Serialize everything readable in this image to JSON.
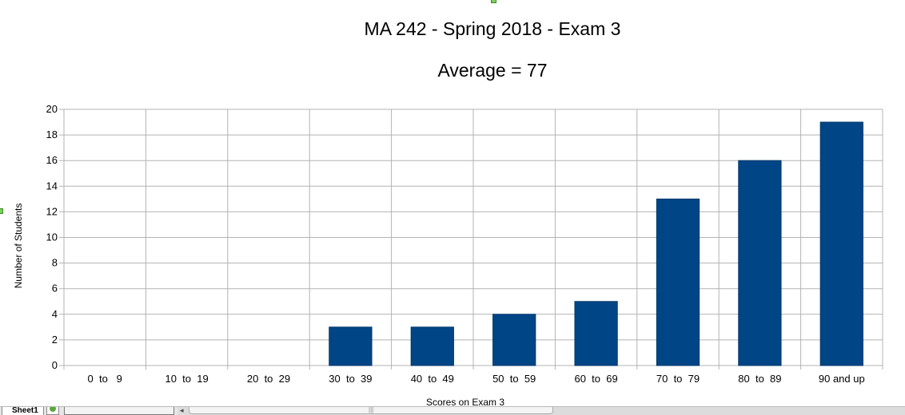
{
  "chart_data": {
    "type": "bar",
    "title": "MA 242 - Spring 2018 - Exam 3",
    "subtitle": "Average = 77",
    "xlabel": "Scores on Exam 3",
    "ylabel": "Number of Students",
    "categories": [
      "0  to   9",
      "10  to  19",
      "20  to  29",
      "30  to  39",
      "40  to  49",
      "50  to  59",
      "60  to  69",
      "70  to  79",
      "80  to  89",
      "90 and up"
    ],
    "values": [
      0,
      0,
      0,
      3,
      3,
      4,
      5,
      13,
      16,
      19
    ],
    "yticks": [
      0,
      2,
      4,
      6,
      8,
      10,
      12,
      14,
      16,
      18,
      20
    ],
    "ylim": [
      0,
      20
    ],
    "grid": true,
    "legend": "none",
    "bar_color": "#004586"
  },
  "sheet_bar": {
    "tab_label": "Sheet1",
    "scroll_grip": "|||",
    "scroll_left_arrow": "◂"
  }
}
